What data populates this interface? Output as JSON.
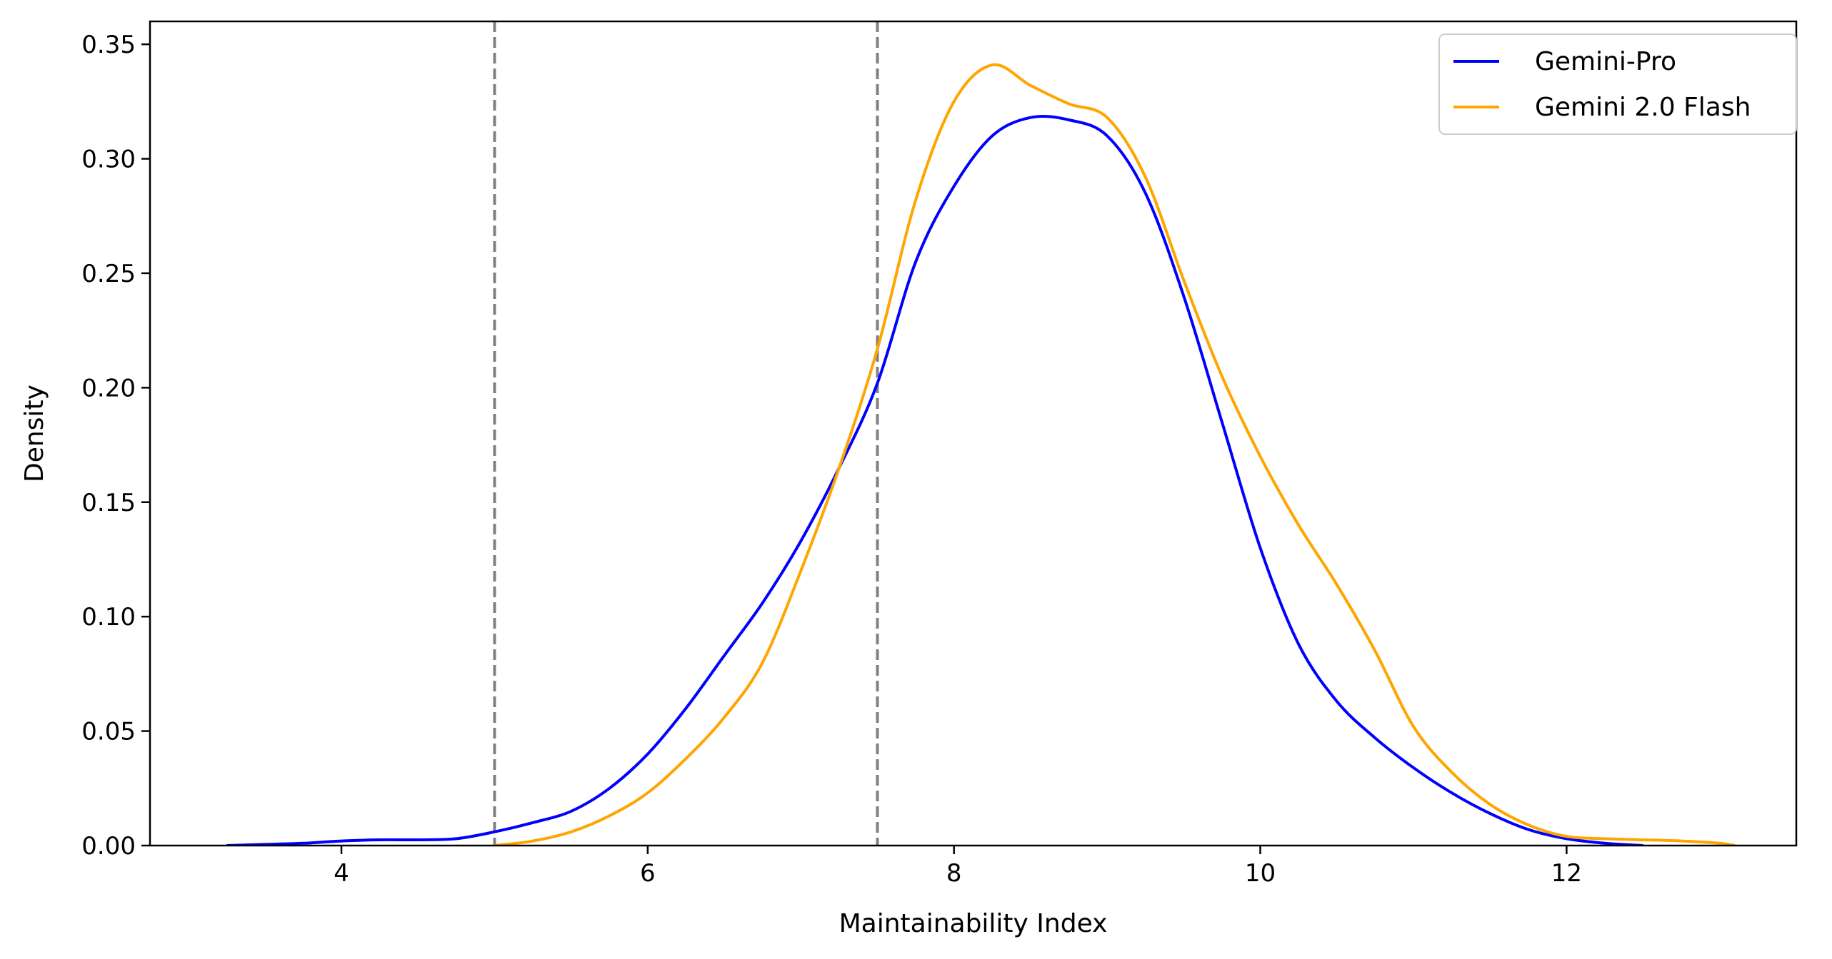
{
  "chart_data": {
    "type": "line",
    "title": "",
    "xlabel": "Maintainability Index",
    "ylabel": "Density",
    "xlim": [
      2.75,
      13.5
    ],
    "ylim": [
      0,
      0.36
    ],
    "xticks": [
      4,
      6,
      8,
      10,
      12
    ],
    "xtick_labels": [
      "4",
      "6",
      "8",
      "10",
      "12"
    ],
    "yticks": [
      0,
      0.05,
      0.1,
      0.15,
      0.2,
      0.25,
      0.3,
      0.35
    ],
    "ytick_labels": [
      "0.00",
      "0.05",
      "0.10",
      "0.15",
      "0.20",
      "0.25",
      "0.30",
      "0.35"
    ],
    "grid": false,
    "legend_position": "top-right",
    "reference_lines": [
      {
        "x": 5.0,
        "color": "#808080",
        "style": "dashed"
      },
      {
        "x": 7.5,
        "color": "#808080",
        "style": "dashed"
      }
    ],
    "series": [
      {
        "name": "Gemini-Pro",
        "color": "#0000ff",
        "x": [
          3.25,
          3.5,
          3.75,
          4.0,
          4.25,
          4.5,
          4.75,
          5.0,
          5.25,
          5.5,
          5.75,
          6.0,
          6.25,
          6.5,
          6.75,
          7.0,
          7.25,
          7.5,
          7.75,
          8.0,
          8.25,
          8.5,
          8.75,
          9.0,
          9.25,
          9.5,
          9.75,
          10.0,
          10.25,
          10.5,
          10.75,
          11.0,
          11.25,
          11.5,
          11.75,
          12.0,
          12.25,
          12.5
        ],
        "y": [
          0.0,
          0.0005,
          0.001,
          0.002,
          0.0025,
          0.0025,
          0.003,
          0.006,
          0.01,
          0.015,
          0.025,
          0.04,
          0.06,
          0.083,
          0.106,
          0.133,
          0.165,
          0.202,
          0.255,
          0.288,
          0.31,
          0.318,
          0.317,
          0.31,
          0.285,
          0.24,
          0.185,
          0.13,
          0.088,
          0.063,
          0.047,
          0.034,
          0.023,
          0.014,
          0.007,
          0.003,
          0.001,
          0.0
        ]
      },
      {
        "name": "Gemini 2.0 Flash",
        "color": "#ffa500",
        "x": [
          5.0,
          5.25,
          5.5,
          5.75,
          6.0,
          6.25,
          6.5,
          6.75,
          7.0,
          7.25,
          7.5,
          7.75,
          8.0,
          8.25,
          8.5,
          8.75,
          9.0,
          9.25,
          9.5,
          9.75,
          10.0,
          10.25,
          10.5,
          10.75,
          11.0,
          11.25,
          11.5,
          11.75,
          12.0,
          12.25,
          12.5,
          12.75,
          13.0,
          13.1
        ],
        "y": [
          0.0,
          0.002,
          0.006,
          0.013,
          0.023,
          0.038,
          0.056,
          0.08,
          0.12,
          0.165,
          0.217,
          0.282,
          0.325,
          0.341,
          0.332,
          0.324,
          0.318,
          0.292,
          0.247,
          0.205,
          0.17,
          0.14,
          0.114,
          0.085,
          0.052,
          0.032,
          0.018,
          0.009,
          0.004,
          0.003,
          0.0025,
          0.002,
          0.001,
          0.0
        ]
      }
    ]
  }
}
